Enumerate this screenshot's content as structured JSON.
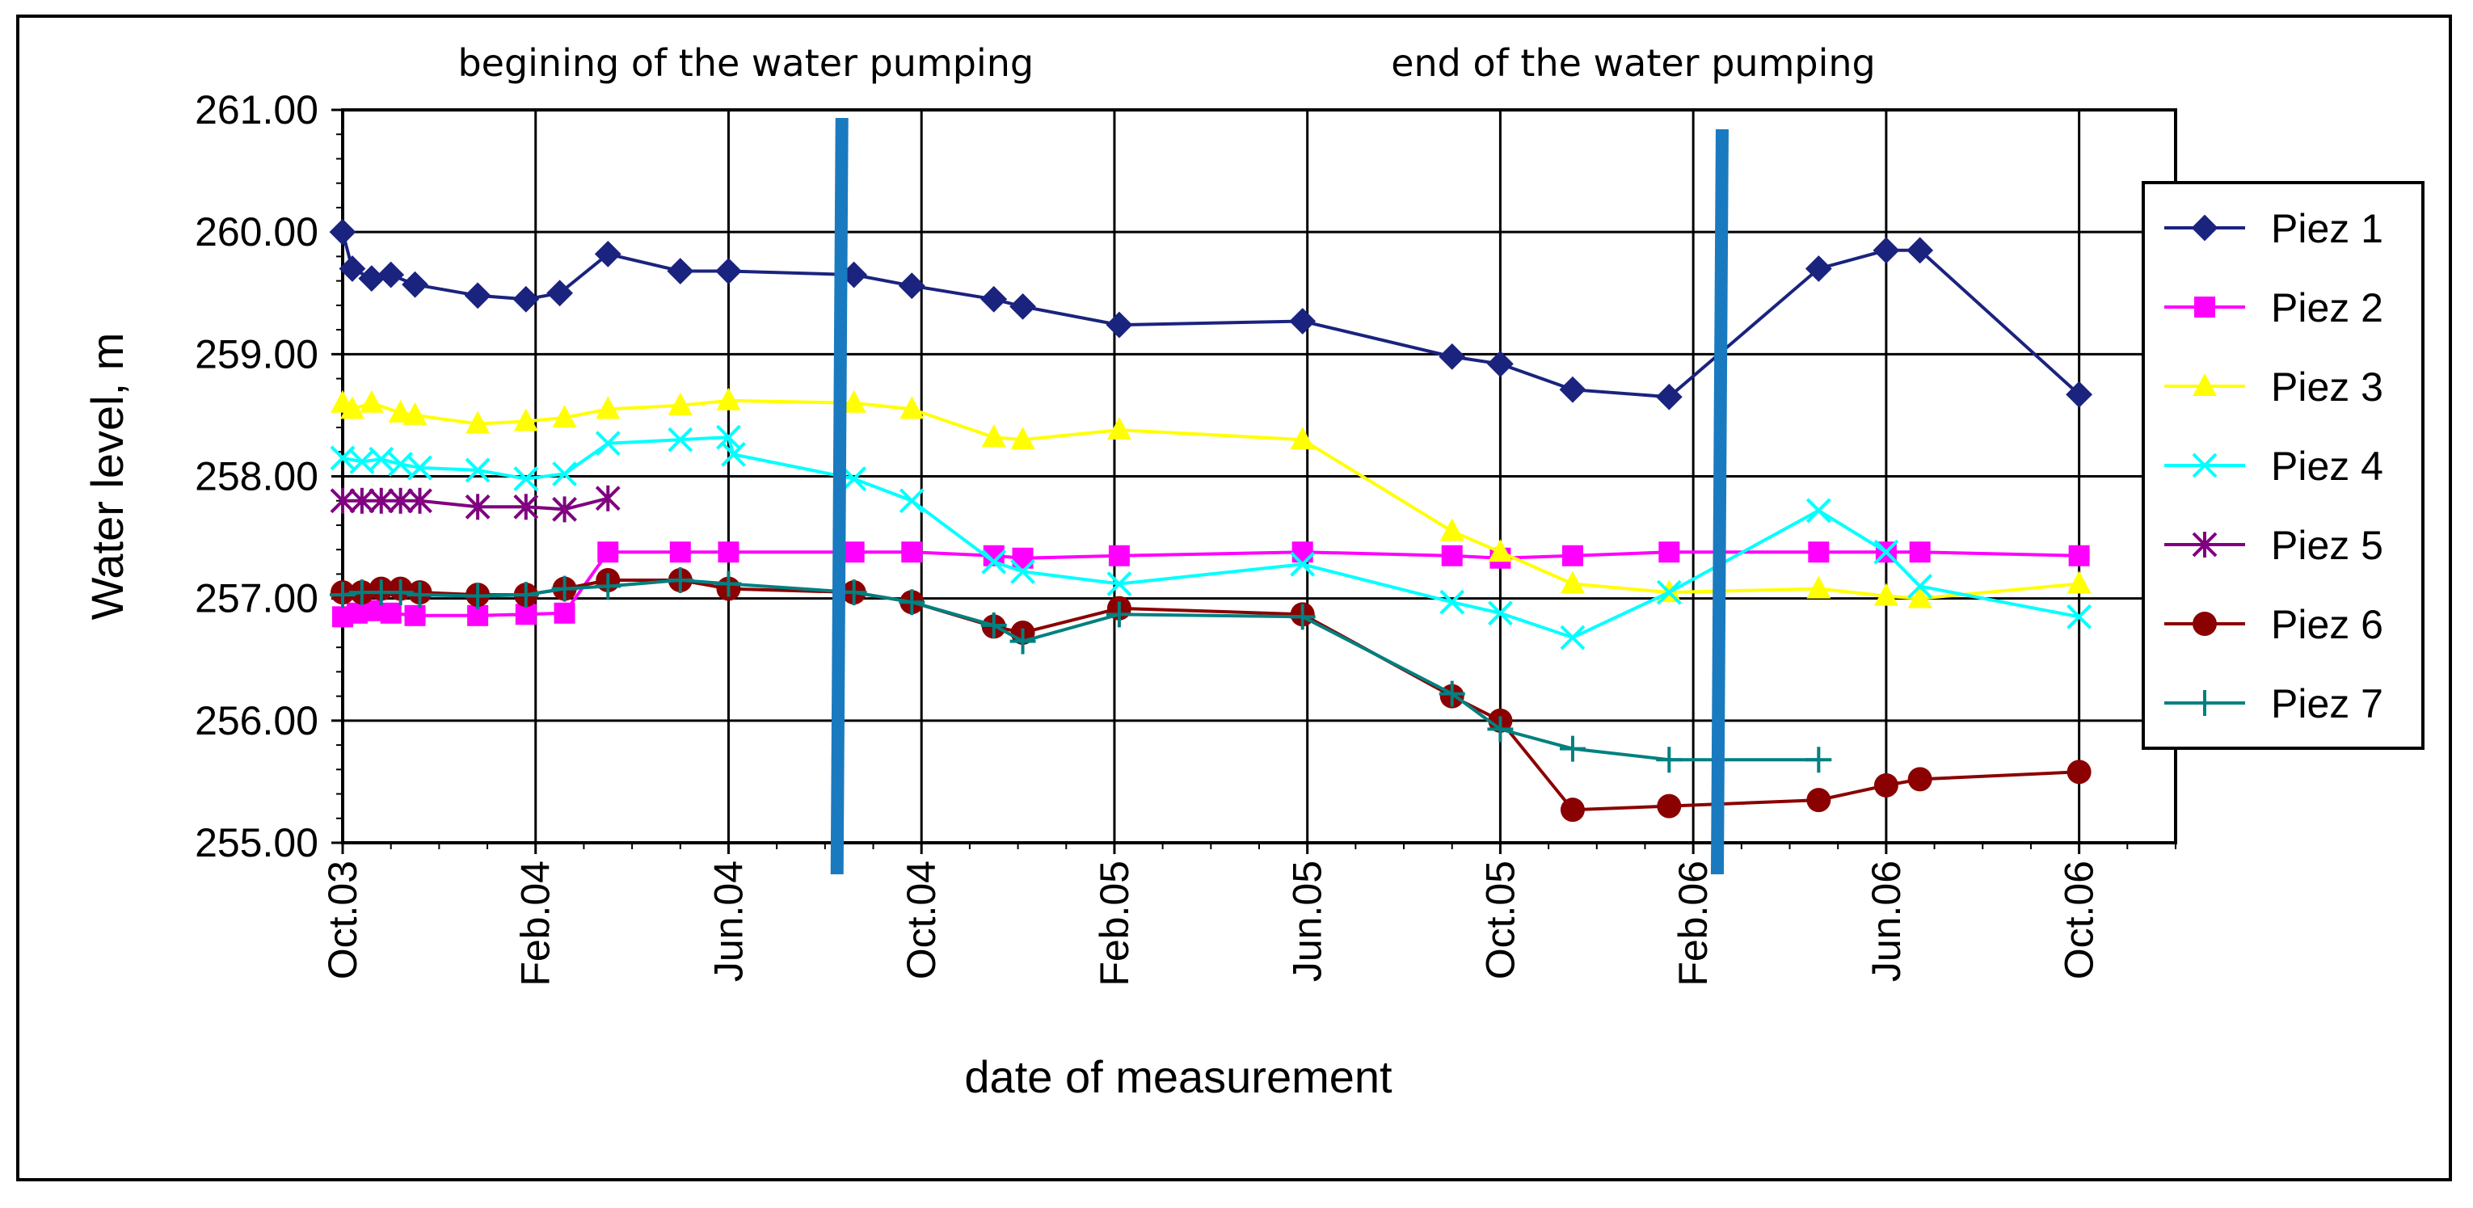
{
  "chart_data": {
    "type": "line",
    "xlabel": "date of measurement",
    "ylabel": "Water level, m",
    "ylim": [
      255.0,
      261.0
    ],
    "ytick_values": [
      255.0,
      256.0,
      257.0,
      258.0,
      259.0,
      260.0,
      261.0
    ],
    "ytick_labels": [
      "255.00",
      "256.00",
      "257.00",
      "258.00",
      "259.00",
      "260.00",
      "261.00"
    ],
    "xlim_months": [
      0,
      38
    ],
    "xtick_values": [
      0,
      4,
      8,
      12,
      16,
      20,
      24,
      28,
      32,
      36
    ],
    "xtick_labels": [
      "Oct.03",
      "Feb.04",
      "Jun.04",
      "Oct.04",
      "Feb.05",
      "Jun.05",
      "Oct.05",
      "Feb.06",
      "Jun.06",
      "Oct.06"
    ],
    "grid": true,
    "legend_position": "right",
    "annotations": [
      {
        "text": "begining of the water pumping",
        "x": 10.2
      },
      {
        "text": "end of the water pumping",
        "x": 28.6
      }
    ],
    "vlines": [
      {
        "x": 10.35,
        "color": "#1a7abf"
      },
      {
        "x": 28.6,
        "color": "#1a7abf"
      }
    ],
    "series": [
      {
        "name": "Piez 1",
        "color": "#1a237e",
        "marker": "diamond",
        "x": [
          0,
          0.2,
          0.6,
          1.0,
          1.5,
          2.8,
          3.8,
          4.5,
          5.5,
          7.0,
          8.0,
          10.6,
          11.8,
          13.5,
          14.1,
          16.1,
          19.9,
          23.0,
          24.0,
          25.5,
          27.5,
          30.6,
          32.0,
          32.7,
          36.0
        ],
        "y": [
          260.0,
          259.7,
          259.62,
          259.65,
          259.57,
          259.48,
          259.45,
          259.5,
          259.82,
          259.68,
          259.68,
          259.65,
          259.56,
          259.45,
          259.39,
          259.24,
          259.27,
          258.98,
          258.92,
          258.71,
          258.65,
          259.7,
          259.85,
          259.85,
          258.67
        ]
      },
      {
        "name": "Piez 2",
        "color": "#ff00ff",
        "marker": "square",
        "x": [
          0,
          0.3,
          0.6,
          1.0,
          1.5,
          2.8,
          3.8,
          4.6,
          5.5,
          7.0,
          8.0,
          10.6,
          11.8,
          13.5,
          14.1,
          16.1,
          19.9,
          23.0,
          24.0,
          25.5,
          27.5,
          30.6,
          32.0,
          32.7,
          36.0
        ],
        "y": [
          256.85,
          256.88,
          256.9,
          256.88,
          256.86,
          256.86,
          256.87,
          256.88,
          257.38,
          257.38,
          257.38,
          257.38,
          257.38,
          257.35,
          257.33,
          257.35,
          257.38,
          257.35,
          257.33,
          257.35,
          257.38,
          257.38,
          257.38,
          257.38,
          257.35
        ]
      },
      {
        "name": "Piez 3",
        "color": "#ffff00",
        "marker": "triangle",
        "x": [
          0,
          0.2,
          0.6,
          1.2,
          1.5,
          2.8,
          3.8,
          4.6,
          5.5,
          7.0,
          8.0,
          10.6,
          11.8,
          13.5,
          14.1,
          16.1,
          19.9,
          23.0,
          24.0,
          25.5,
          27.5,
          30.6,
          32.0,
          32.7,
          36.0
        ],
        "y": [
          258.6,
          258.55,
          258.6,
          258.52,
          258.5,
          258.43,
          258.45,
          258.48,
          258.55,
          258.58,
          258.62,
          258.6,
          258.55,
          258.32,
          258.3,
          258.38,
          258.3,
          257.55,
          257.38,
          257.12,
          257.05,
          257.08,
          257.02,
          257.0,
          257.12
        ]
      },
      {
        "name": "Piez 4",
        "color": "#00ffff",
        "marker": "x",
        "x": [
          0,
          0.4,
          0.8,
          1.2,
          1.6,
          2.8,
          3.8,
          4.6,
          5.5,
          7.0,
          8.0,
          8.1,
          10.6,
          11.8,
          13.5,
          14.1,
          16.1,
          19.9,
          23.0,
          24.0,
          25.5,
          27.5,
          30.6,
          32.0,
          32.7,
          36.0
        ],
        "y": [
          258.15,
          258.12,
          258.14,
          258.1,
          258.07,
          258.05,
          257.98,
          258.02,
          258.27,
          258.3,
          258.32,
          258.18,
          257.98,
          257.8,
          257.3,
          257.22,
          257.12,
          257.28,
          256.97,
          256.88,
          256.68,
          257.05,
          257.72,
          257.38,
          257.1,
          256.85
        ]
      },
      {
        "name": "Piez 5",
        "color": "#800080",
        "marker": "star",
        "x": [
          0,
          0.4,
          0.8,
          1.2,
          1.6,
          2.8,
          3.8,
          4.6,
          5.5
        ],
        "y": [
          257.8,
          257.8,
          257.8,
          257.8,
          257.8,
          257.75,
          257.75,
          257.73,
          257.82
        ]
      },
      {
        "name": "Piez 6",
        "color": "#8b0000",
        "marker": "circle",
        "x": [
          0,
          0.4,
          0.8,
          1.2,
          1.6,
          2.8,
          3.8,
          4.6,
          5.5,
          7.0,
          8.0,
          10.6,
          11.8,
          13.5,
          14.1,
          16.1,
          19.9,
          23.0,
          24.0,
          25.5,
          27.5,
          30.6,
          32.0,
          32.7,
          36.0
        ],
        "y": [
          257.05,
          257.05,
          257.08,
          257.08,
          257.05,
          257.03,
          257.03,
          257.08,
          257.15,
          257.15,
          257.08,
          257.05,
          256.97,
          256.77,
          256.72,
          256.92,
          256.87,
          256.2,
          256.0,
          255.27,
          255.3,
          255.35,
          255.47,
          255.52,
          255.58
        ]
      },
      {
        "name": "Piez 7",
        "color": "#008080",
        "marker": "plus",
        "x": [
          0,
          0.4,
          0.8,
          1.2,
          1.6,
          2.8,
          3.8,
          4.6,
          5.5,
          7.0,
          8.0,
          10.6,
          11.8,
          13.5,
          14.1,
          16.1,
          19.9,
          23.0,
          24.0,
          25.5,
          27.5,
          30.6
        ],
        "y": [
          257.03,
          257.05,
          257.05,
          257.05,
          257.03,
          257.02,
          257.03,
          257.08,
          257.1,
          257.15,
          257.12,
          257.05,
          256.97,
          256.78,
          256.65,
          256.87,
          256.85,
          256.22,
          255.93,
          255.77,
          255.68,
          255.68
        ]
      }
    ]
  }
}
